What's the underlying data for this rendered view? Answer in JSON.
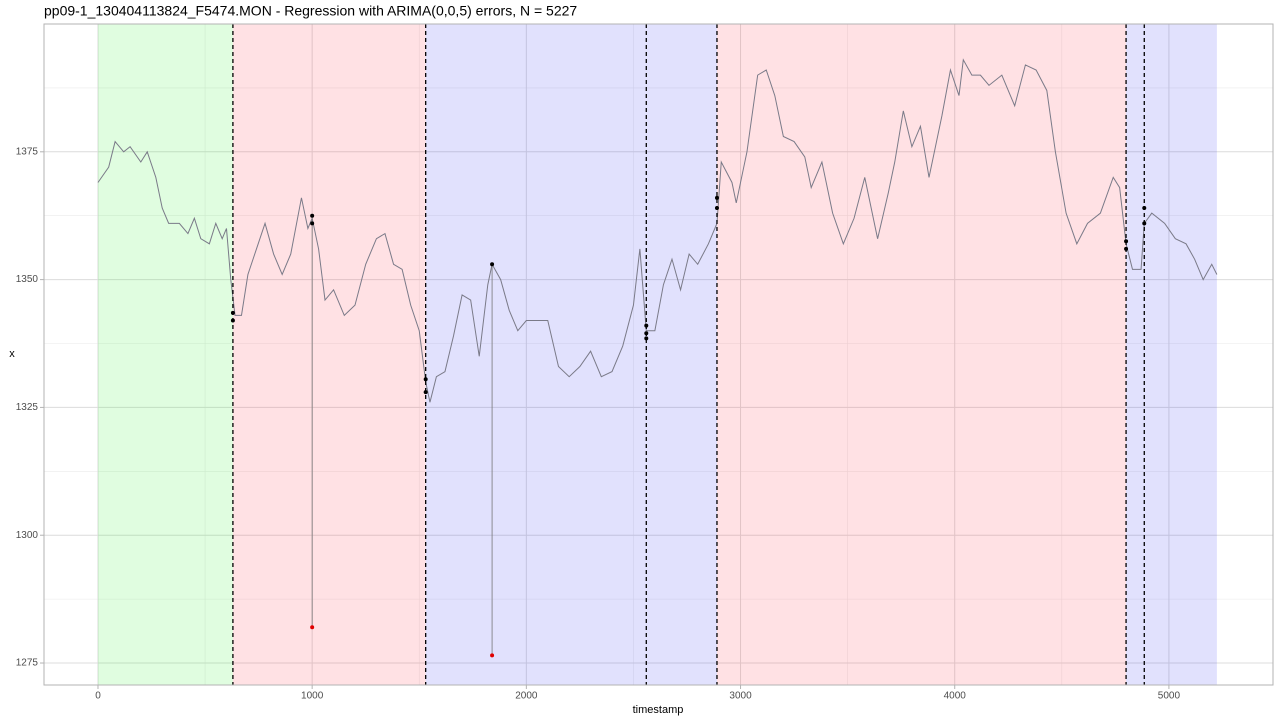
{
  "chart_data": {
    "type": "line",
    "title": "pp09-1_130404113824_F5474.MON - Regression with ARIMA(0,0,5) errors, N = 5227",
    "x_label": "timestamp",
    "y_label": "x",
    "xlim": [
      -252,
      5486
    ],
    "ylim": [
      1270.7,
      1400
    ],
    "xticks": [
      0,
      1000,
      2000,
      3000,
      4000,
      5000
    ],
    "x_minor_ticks": [
      500,
      1500,
      2500,
      3500,
      4500
    ],
    "yticks": [
      1275,
      1300,
      1325,
      1350,
      1375
    ],
    "y_minor_ticks": [
      1287.5,
      1312.5,
      1337.5,
      1362.5,
      1387.5
    ],
    "grid": true,
    "color": "#7a7a88",
    "regions": [
      {
        "start": 0,
        "end": 630,
        "color": "#22ee22"
      },
      {
        "start": 630,
        "end": 1530,
        "color": "#ff2a40"
      },
      {
        "start": 1530,
        "end": 2890,
        "color": "#2a2aee"
      },
      {
        "start": 2890,
        "end": 4800,
        "color": "#ff2a40"
      },
      {
        "start": 4800,
        "end": 5224,
        "color": "#2a2aee"
      }
    ],
    "changepoints": [
      630,
      1530,
      2560,
      2890,
      4800,
      4885
    ],
    "x": [
      0,
      50,
      80,
      120,
      150,
      200,
      230,
      270,
      300,
      330,
      380,
      420,
      450,
      480,
      520,
      550,
      580,
      600,
      620,
      640,
      670,
      700,
      740,
      780,
      820,
      860,
      900,
      950,
      980,
      1000,
      1030,
      1060,
      1100,
      1150,
      1200,
      1250,
      1300,
      1340,
      1380,
      1420,
      1460,
      1500,
      1530,
      1550,
      1580,
      1620,
      1660,
      1700,
      1740,
      1780,
      1820,
      1840,
      1880,
      1920,
      1960,
      2000,
      2050,
      2100,
      2150,
      2200,
      2250,
      2300,
      2350,
      2400,
      2450,
      2500,
      2530,
      2560,
      2600,
      2640,
      2680,
      2720,
      2760,
      2800,
      2850,
      2890,
      2910,
      2960,
      2980,
      3030,
      3080,
      3120,
      3160,
      3200,
      3250,
      3300,
      3330,
      3380,
      3430,
      3480,
      3530,
      3580,
      3640,
      3690,
      3720,
      3760,
      3800,
      3840,
      3880,
      3940,
      3980,
      4020,
      4040,
      4080,
      4120,
      4160,
      4220,
      4280,
      4330,
      4380,
      4430,
      4470,
      4520,
      4570,
      4620,
      4680,
      4740,
      4770,
      4800,
      4830,
      4870,
      4885,
      4920,
      4980,
      5030,
      5080,
      5120,
      5160,
      5200,
      5224
    ],
    "values": [
      1369,
      1372,
      1377,
      1375,
      1376,
      1373,
      1375,
      1370,
      1364,
      1361,
      1361,
      1359,
      1362,
      1358,
      1357,
      1361,
      1358,
      1360,
      1350,
      1343,
      1343,
      1351,
      1356,
      1361,
      1355,
      1351,
      1355,
      1366,
      1360,
      1362,
      1356,
      1346,
      1348,
      1343,
      1345,
      1353,
      1358,
      1359,
      1353,
      1352,
      1345,
      1340,
      1330,
      1326,
      1331,
      1332,
      1339,
      1347,
      1346,
      1335,
      1349,
      1353,
      1350,
      1344,
      1340,
      1342,
      1342,
      1342,
      1333,
      1331,
      1333,
      1336,
      1331,
      1332,
      1337,
      1345,
      1356,
      1340,
      1340,
      1349,
      1354,
      1348,
      1355,
      1353,
      1357,
      1361,
      1373,
      1369,
      1365,
      1375,
      1390,
      1391,
      1386,
      1378,
      1377,
      1374,
      1368,
      1373,
      1363,
      1357,
      1362,
      1370,
      1358,
      1367,
      1373,
      1383,
      1376,
      1380,
      1370,
      1382,
      1391,
      1386,
      1393,
      1390,
      1390,
      1388,
      1390,
      1384,
      1392,
      1391,
      1387,
      1375,
      1363,
      1357,
      1361,
      1363,
      1370,
      1368,
      1357,
      1352,
      1352,
      1361,
      1363,
      1361,
      1358,
      1357,
      1354,
      1350,
      1353,
      1351
    ],
    "points": {
      "color": "#000000",
      "x": [
        630,
        630,
        1000,
        1000,
        1530,
        1530,
        1840,
        2560,
        2560,
        2560,
        2890,
        2890,
        4800,
        4800,
        4885,
        4885
      ],
      "y": [
        1343.5,
        1342,
        1362.5,
        1361,
        1330.5,
        1328,
        1353,
        1341,
        1339.5,
        1338.5,
        1366,
        1364,
        1357.5,
        1356,
        1364,
        1361
      ]
    },
    "outliers": {
      "color": "#e00000",
      "x": [
        1000,
        1840
      ],
      "y": [
        1282,
        1276.5
      ],
      "from": [
        1362,
        1353
      ]
    }
  }
}
